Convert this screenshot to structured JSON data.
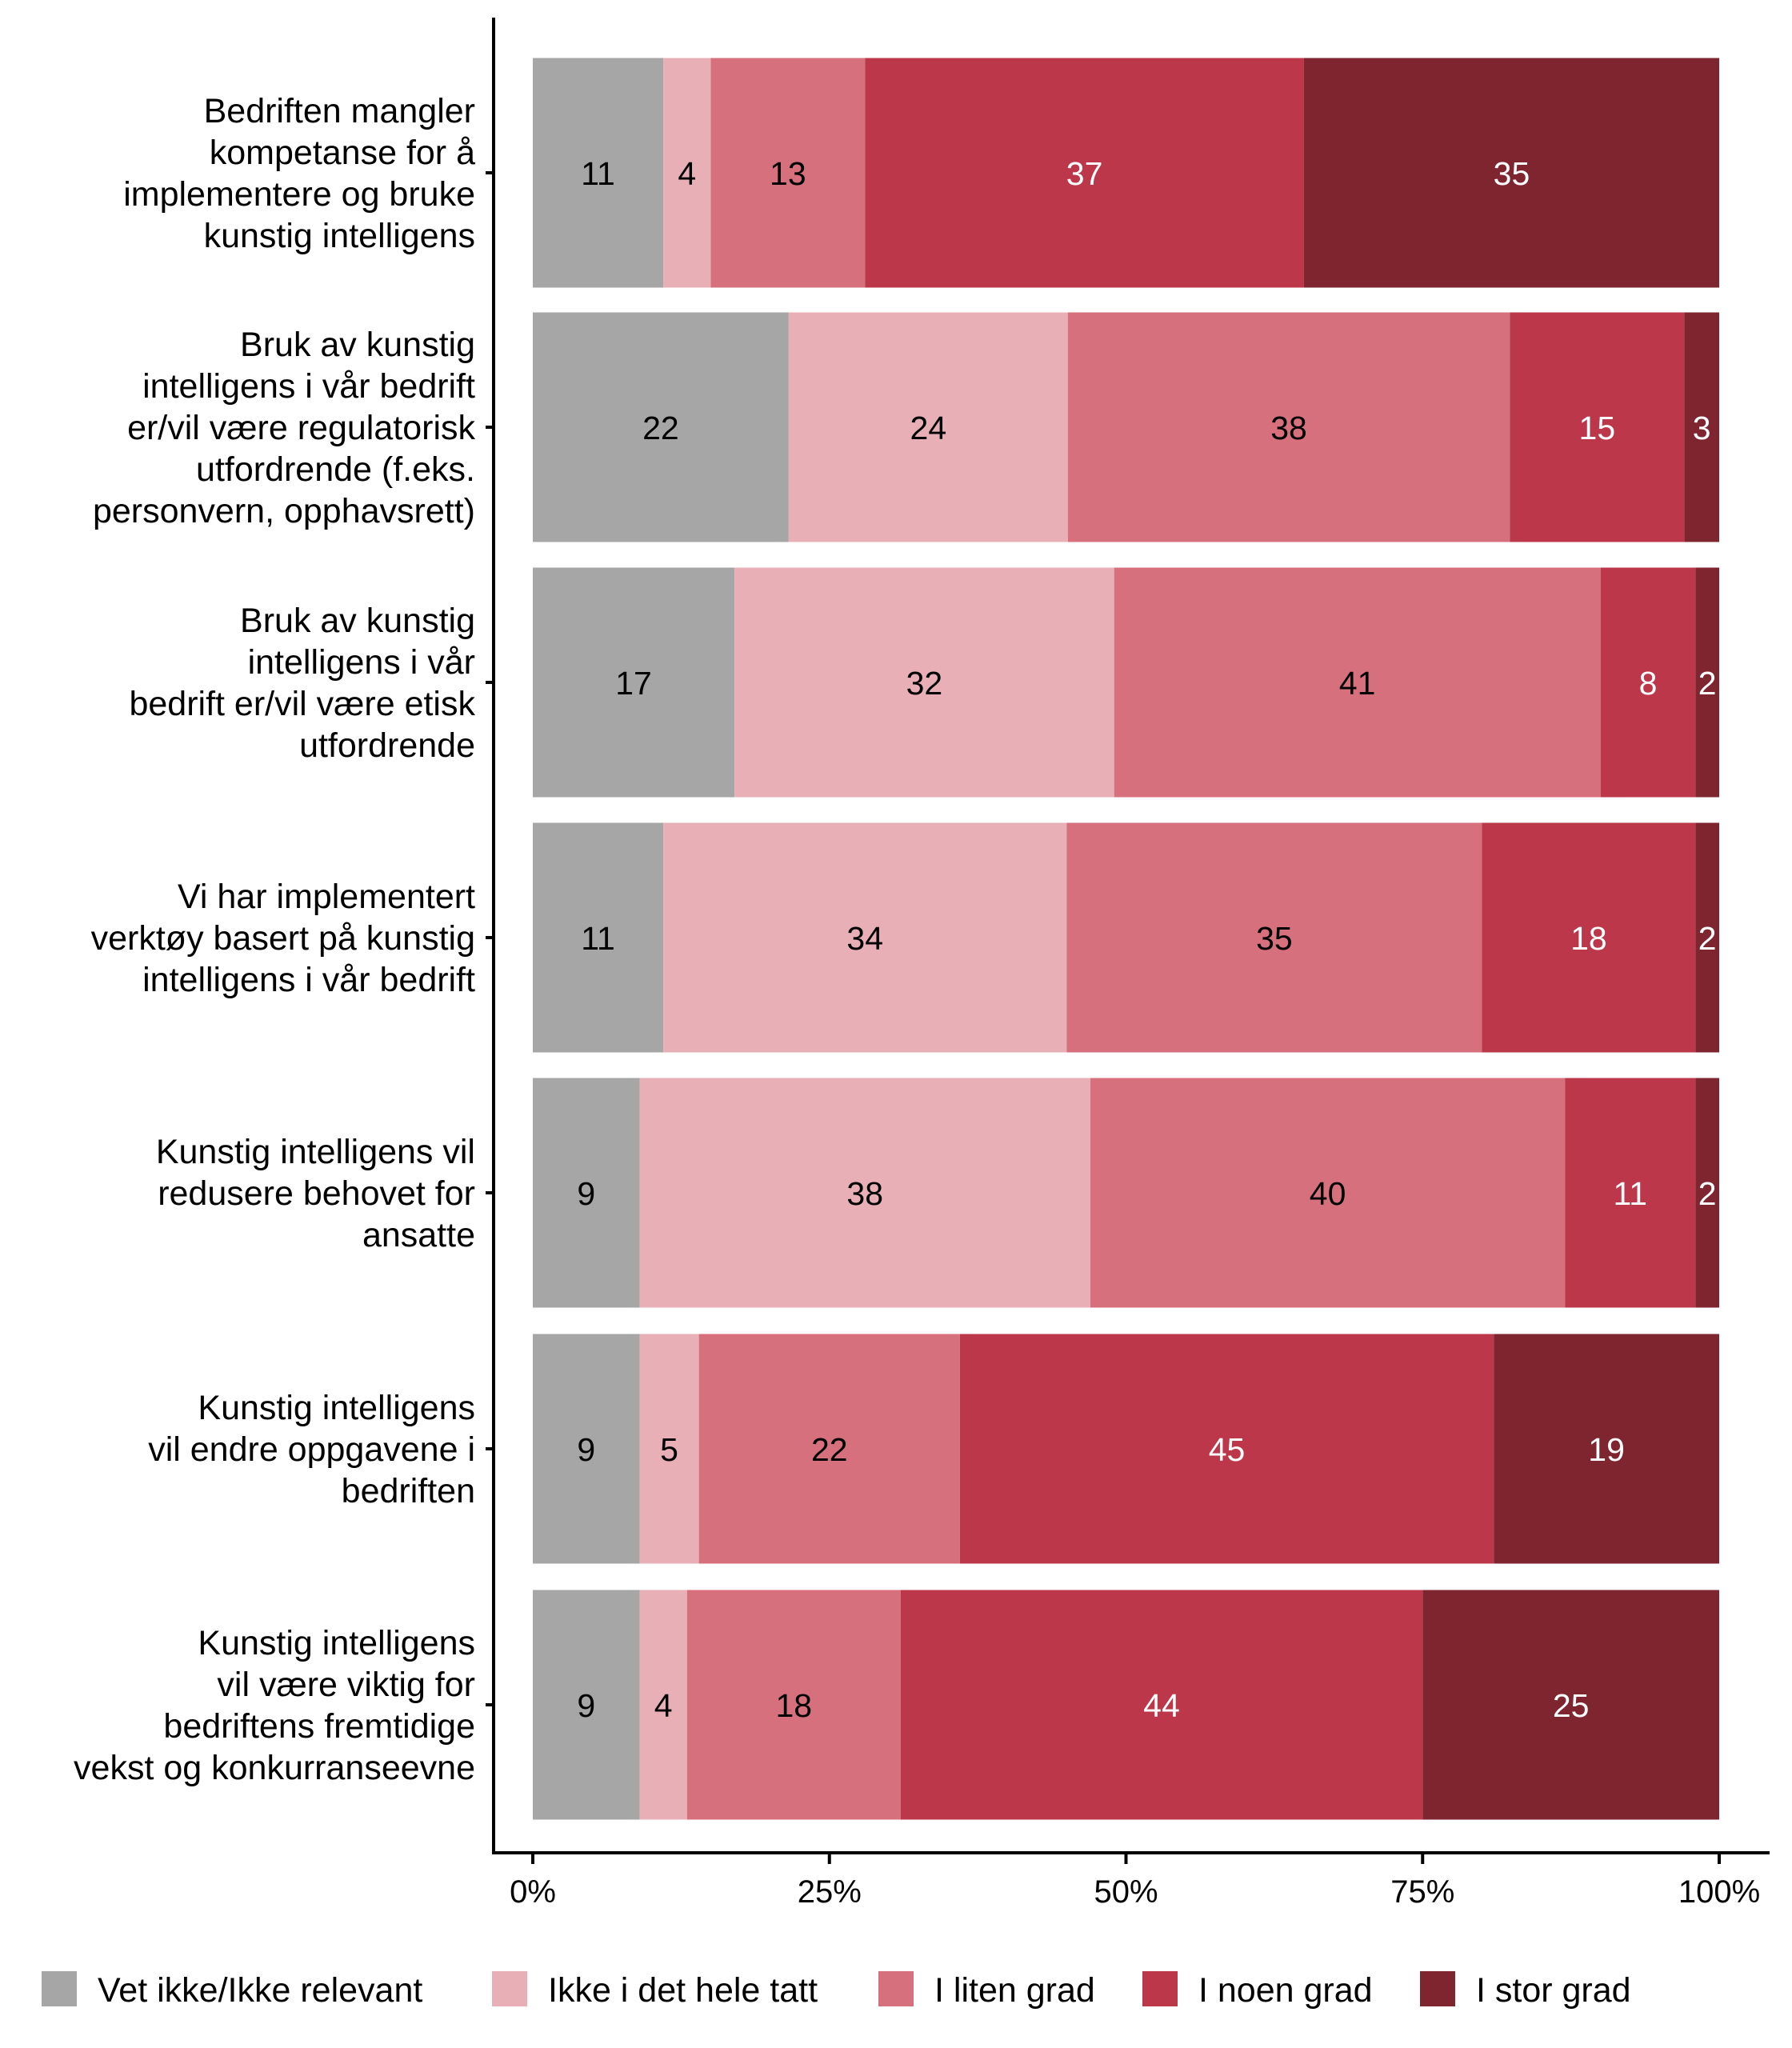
{
  "chart_data": {
    "type": "bar",
    "orientation": "horizontal",
    "stacked": true,
    "percent": true,
    "title": "",
    "xlabel": "",
    "ylabel": "",
    "xlim": [
      0,
      100
    ],
    "x_ticks": [
      "0%",
      "25%",
      "50%",
      "75%",
      "100%"
    ],
    "x_tick_values": [
      0,
      25,
      50,
      75,
      100
    ],
    "grid": false,
    "legend_position": "bottom",
    "categories": [
      [
        "Bedriften mangler",
        "kompetanse for å",
        "implementere og bruke",
        "kunstig intelligens"
      ],
      [
        "Bruk av kunstig",
        "intelligens i vår bedrift",
        "er/vil være regulatorisk",
        "utfordrende (f.eks.",
        "personvern, opphavsrett)"
      ],
      [
        "Bruk av kunstig",
        "intelligens i vår",
        "bedrift er/vil være etisk",
        "utfordrende"
      ],
      [
        "Vi har implementert",
        "verktøy basert på kunstig",
        "intelligens i vår bedrift"
      ],
      [
        "Kunstig intelligens vil",
        "redusere behovet for",
        "ansatte"
      ],
      [
        "Kunstig intelligens",
        "vil endre oppgavene i",
        "bedriften"
      ],
      [
        "Kunstig intelligens",
        "vil være viktig for",
        "bedriftens fremtidige",
        "vekst og konkurranseevne"
      ]
    ],
    "series": [
      {
        "name": "Vet ikke/Ikke relevant",
        "color": "#a6a6a6",
        "label_color": "#000000",
        "values": [
          11,
          22,
          17,
          11,
          9,
          9,
          9
        ]
      },
      {
        "name": "Ikke i det hele tatt",
        "color": "#e8b0b6",
        "label_color": "#000000",
        "values": [
          4,
          24,
          32,
          34,
          38,
          5,
          4
        ]
      },
      {
        "name": "I liten grad",
        "color": "#d6707c",
        "label_color": "#000000",
        "values": [
          13,
          38,
          41,
          35,
          40,
          22,
          18
        ]
      },
      {
        "name": "I noen grad",
        "color": "#bc374a",
        "label_color": "#ffffff",
        "values": [
          37,
          15,
          8,
          18,
          11,
          45,
          44
        ]
      },
      {
        "name": "I stor grad",
        "color": "#7e2530",
        "label_color": "#ffffff",
        "values": [
          35,
          3,
          2,
          2,
          2,
          19,
          25
        ]
      }
    ]
  }
}
